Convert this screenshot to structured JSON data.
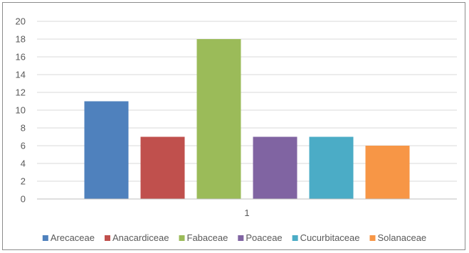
{
  "chart_data": {
    "type": "bar",
    "categories": [
      "1"
    ],
    "series": [
      {
        "name": "Arecaceae",
        "values": [
          11
        ],
        "color": "#4f81bd"
      },
      {
        "name": "Anacardiceae",
        "values": [
          7
        ],
        "color": "#c0504d"
      },
      {
        "name": "Fabaceae",
        "values": [
          18
        ],
        "color": "#9bbb59"
      },
      {
        "name": "Poaceae",
        "values": [
          7
        ],
        "color": "#8064a2"
      },
      {
        "name": "Cucurbitaceae",
        "values": [
          7
        ],
        "color": "#4bacc6"
      },
      {
        "name": "Solanaceae",
        "values": [
          6
        ],
        "color": "#f79646"
      }
    ],
    "y_ticks": [
      "0",
      "2",
      "4",
      "6",
      "8",
      "10",
      "12",
      "14",
      "16",
      "18",
      "20"
    ],
    "ylim": [
      0,
      20
    ],
    "grid": true,
    "legend_position": "bottom",
    "gridline_color": "#d9d9d9",
    "axis_color": "#bfbfbf"
  }
}
